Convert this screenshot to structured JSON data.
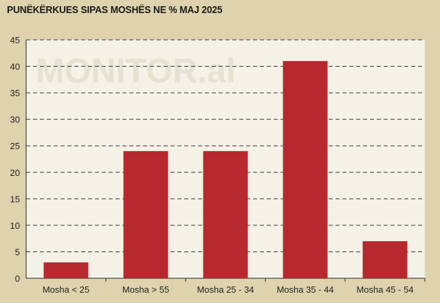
{
  "chart_data": {
    "type": "bar",
    "title": "PUNËKËRKUES SIPAS MOSHËS NE % MAJ 2025",
    "watermark": "MONITOR.al",
    "categories": [
      "Mosha < 25",
      "Mosha > 55",
      "Mosha 25 - 34",
      "Mosha 35 - 44",
      "Mosha 45 - 54"
    ],
    "values": [
      3,
      24,
      24,
      41,
      7
    ],
    "ylim": [
      0,
      45
    ],
    "yticks": [
      "0",
      "5",
      "10",
      "15",
      "20",
      "25",
      "30",
      "35",
      "40",
      "45"
    ],
    "grid": true,
    "colors": {
      "bar": "#b8282f",
      "background": "#ded3ac",
      "plot_background": "#f4f1e6",
      "grid": "#333333"
    }
  }
}
